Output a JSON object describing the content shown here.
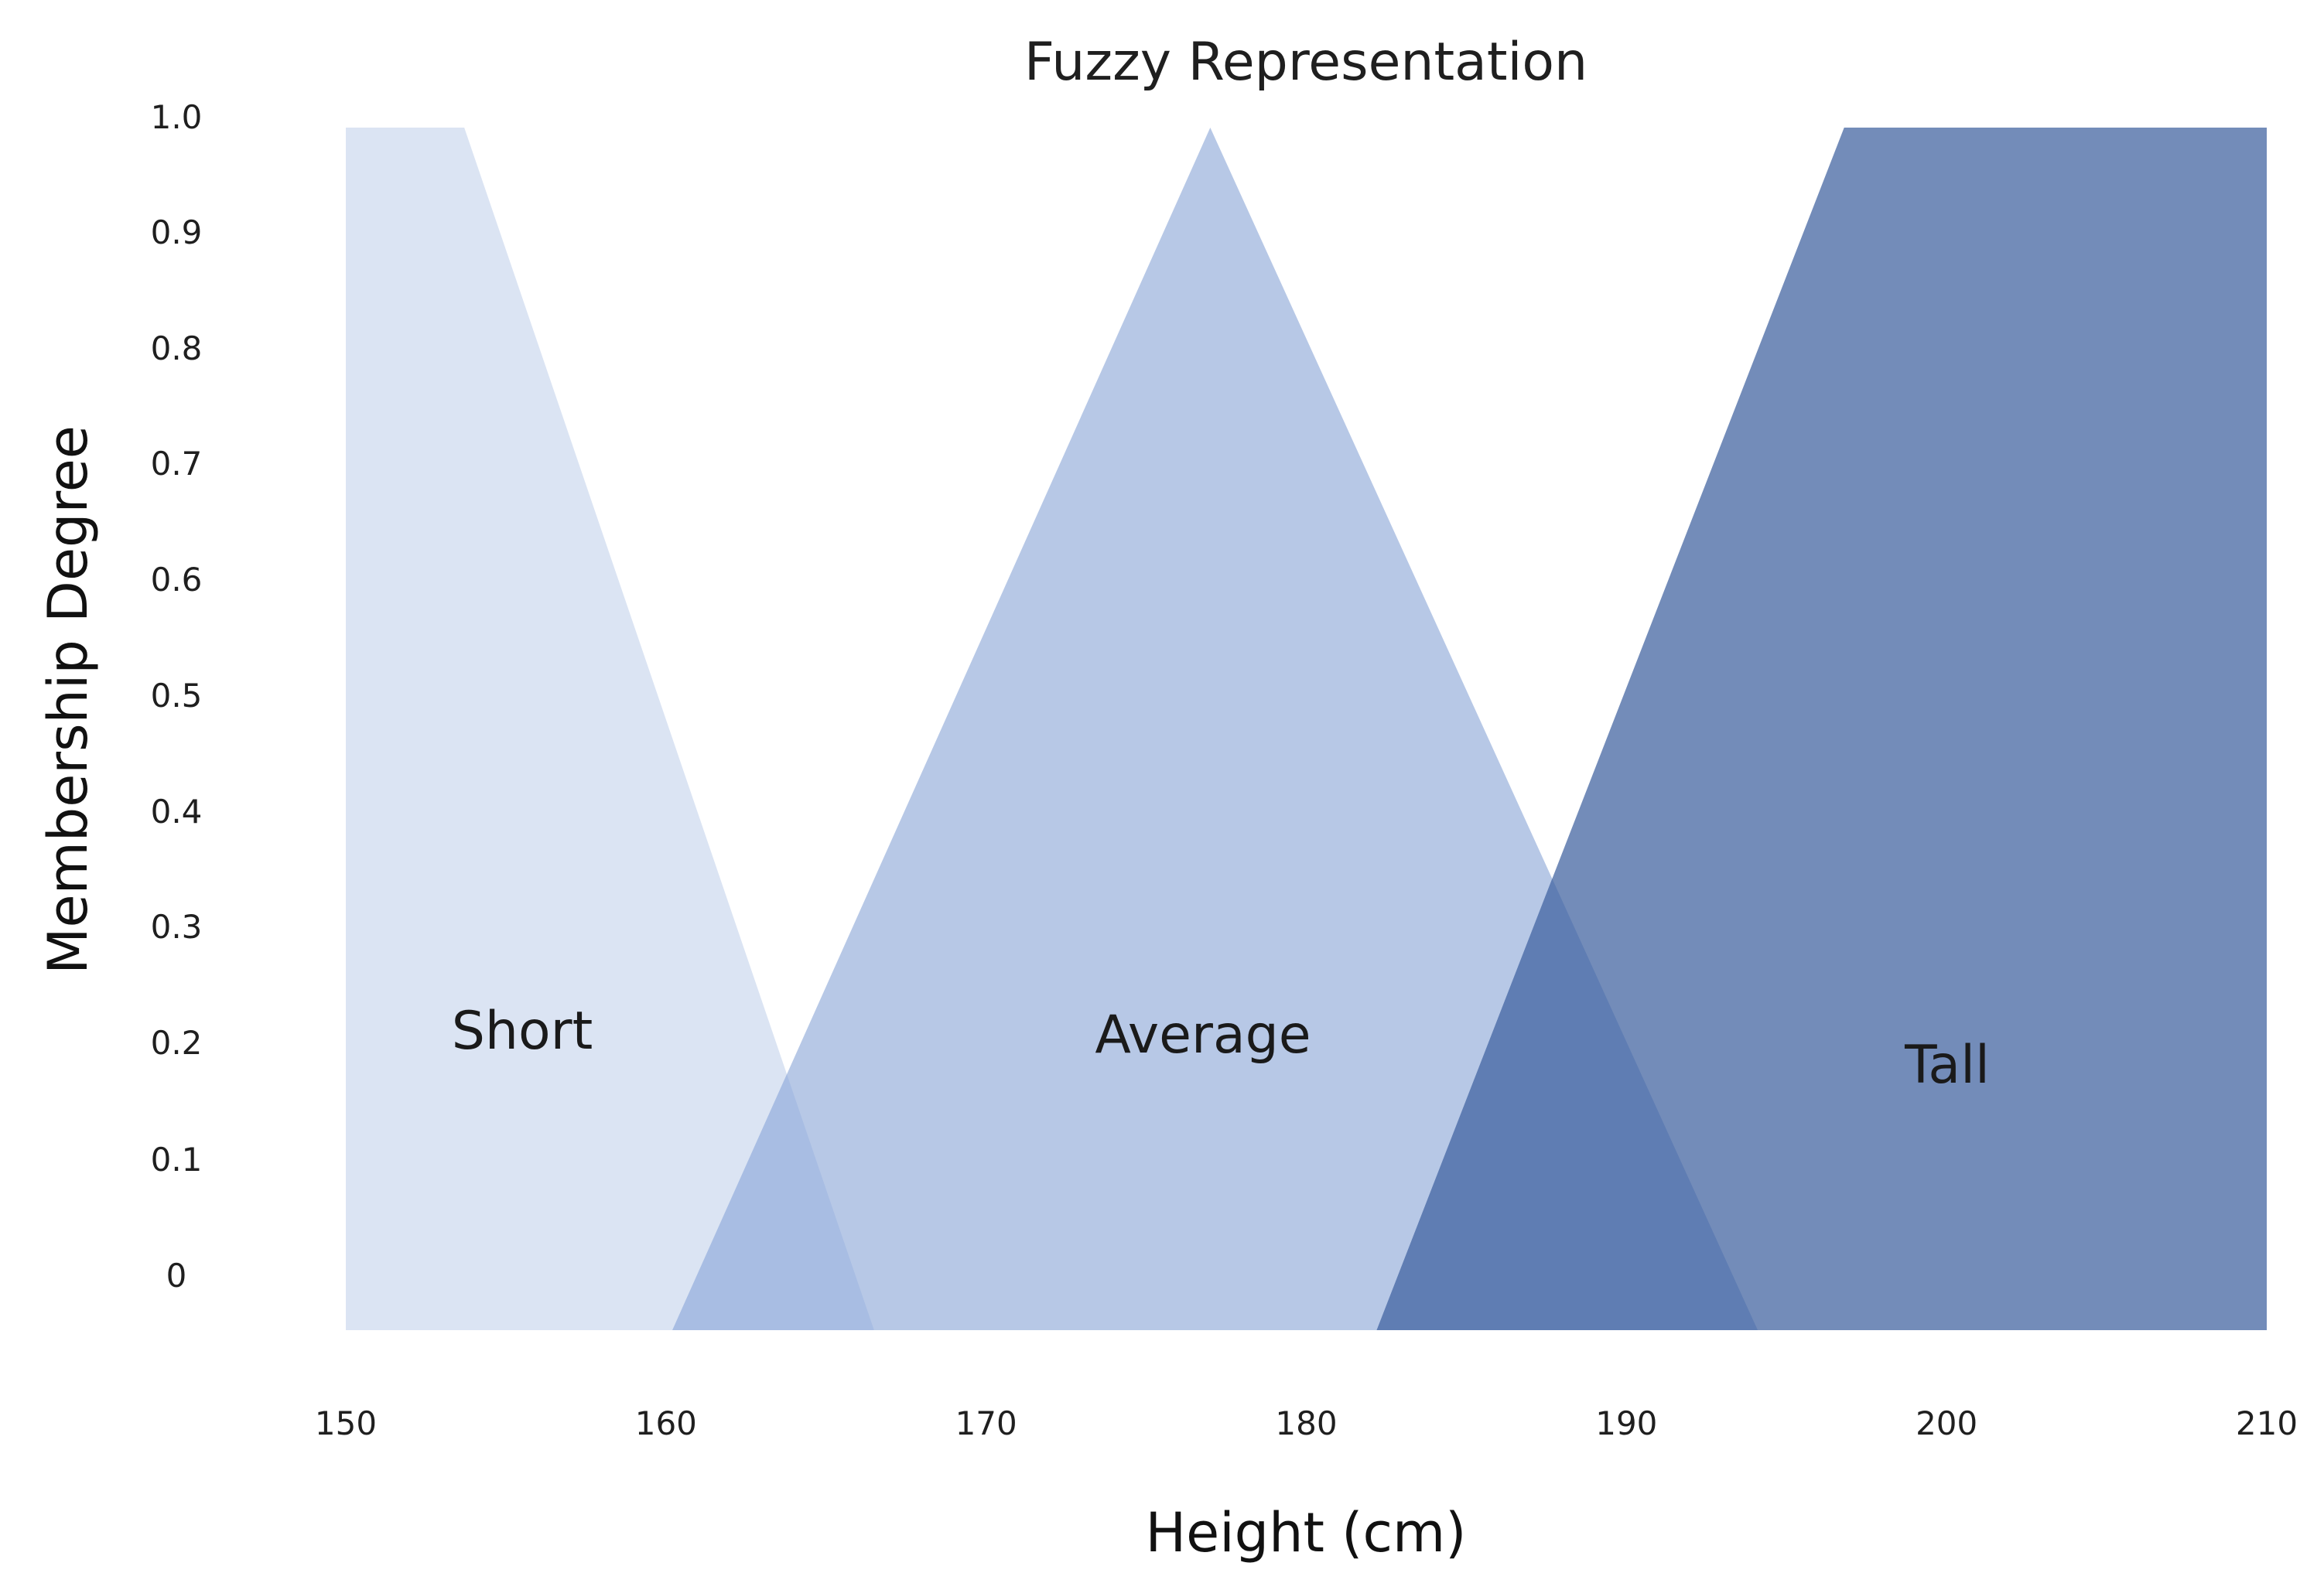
{
  "chart_data": {
    "type": "area",
    "title": "Fuzzy Representation",
    "xlabel": "Height (cm)",
    "ylabel": "Membership Degree",
    "xlim": [
      150,
      210
    ],
    "ylim": [
      0,
      1
    ],
    "x_ticks": [
      "150",
      "160",
      "170",
      "180",
      "190",
      "200",
      "210"
    ],
    "y_ticks": [
      "0",
      "0.1",
      "0.2",
      "0.3",
      "0.4",
      "0.5",
      "0.6",
      "0.7",
      "0.8",
      "0.9",
      "1.0"
    ],
    "grid": false,
    "legend": "none",
    "series": [
      {
        "name": "Short",
        "color": "#dbe4f3",
        "points": [
          [
            150,
            0
          ],
          [
            150,
            1
          ],
          [
            153.7,
            1
          ],
          [
            166.5,
            0
          ]
        ]
      },
      {
        "name": "Average",
        "color": "#b7c8e6",
        "points": [
          [
            160.2,
            0
          ],
          [
            177,
            1
          ],
          [
            194.1,
            0
          ]
        ]
      },
      {
        "name": "Tall",
        "color": "#738cb9",
        "points": [
          [
            182.2,
            0
          ],
          [
            196.8,
            1
          ],
          [
            210,
            1
          ],
          [
            210,
            0
          ]
        ]
      }
    ],
    "overlap_colors": {
      "short_average": "#a8bde3",
      "average_tall": "#5f7db3"
    }
  }
}
